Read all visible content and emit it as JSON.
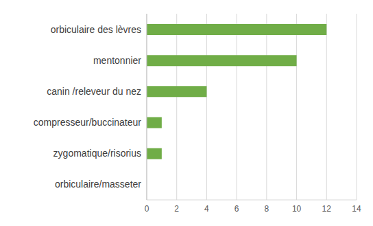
{
  "chart_data": {
    "type": "bar",
    "orientation": "horizontal",
    "categories": [
      "orbiculaire des lèvres",
      "mentonnier",
      "canin /releveur du nez",
      "compresseur/buccinateur",
      "zygomatique/risorius",
      "orbiculaire/masseter"
    ],
    "values": [
      12,
      10,
      4,
      1,
      1,
      0
    ],
    "color": "#70ad47",
    "xlim": [
      0,
      14
    ],
    "xticks": [
      0,
      2,
      4,
      6,
      8,
      10,
      12,
      14
    ],
    "grid": true
  }
}
